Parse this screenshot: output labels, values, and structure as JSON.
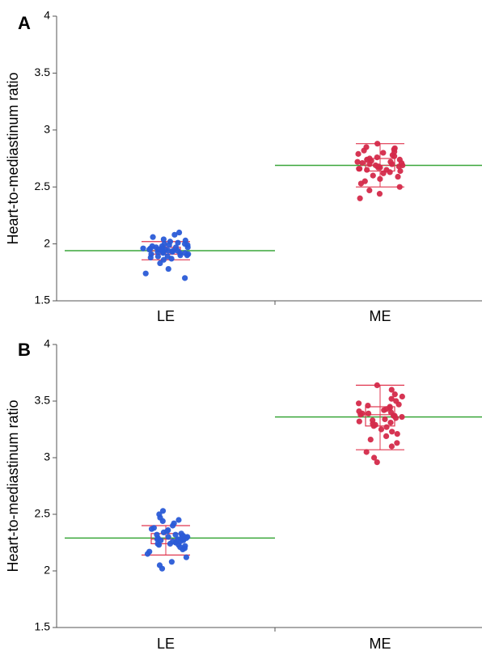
{
  "chart_data": [
    {
      "type": "scatter",
      "panel_label": "A",
      "ylabel": "Heart-to-mediastinum ratio",
      "ylim": [
        1.5,
        4
      ],
      "yticks": [
        "1.5",
        "2",
        "2.5",
        "3",
        "3.5",
        "4"
      ],
      "categories": [
        "LE",
        "ME"
      ],
      "grid": false,
      "groups": [
        {
          "category": "LE",
          "color": "#2a5bd7",
          "mean": 1.94,
          "box": {
            "q1": 1.91,
            "median": 1.94,
            "q3": 1.97
          },
          "whiskers": [
            1.86,
            2.02
          ],
          "points": [
            1.7,
            1.74,
            1.78,
            1.83,
            1.86,
            1.87,
            1.88,
            1.89,
            1.89,
            1.9,
            1.9,
            1.91,
            1.91,
            1.92,
            1.92,
            1.92,
            1.93,
            1.93,
            1.93,
            1.94,
            1.94,
            1.94,
            1.94,
            1.95,
            1.95,
            1.95,
            1.96,
            1.96,
            1.96,
            1.97,
            1.97,
            1.97,
            1.98,
            1.98,
            1.99,
            1.99,
            2.0,
            2.0,
            2.01,
            2.02,
            2.03,
            2.04,
            2.06,
            2.08,
            2.1
          ]
        },
        {
          "category": "ME",
          "color": "#d42a4a",
          "mean": 2.69,
          "box": {
            "q1": 2.64,
            "median": 2.69,
            "q3": 2.75
          },
          "whiskers": [
            2.5,
            2.88
          ],
          "points": [
            2.4,
            2.44,
            2.47,
            2.5,
            2.53,
            2.55,
            2.57,
            2.59,
            2.6,
            2.62,
            2.63,
            2.64,
            2.65,
            2.65,
            2.66,
            2.66,
            2.67,
            2.67,
            2.68,
            2.68,
            2.69,
            2.69,
            2.7,
            2.7,
            2.71,
            2.71,
            2.72,
            2.72,
            2.73,
            2.74,
            2.74,
            2.75,
            2.76,
            2.77,
            2.78,
            2.79,
            2.8,
            2.81,
            2.82,
            2.83,
            2.84,
            2.85,
            2.88
          ]
        }
      ]
    },
    {
      "type": "scatter",
      "panel_label": "B",
      "ylabel": "Heart-to-mediastinum ratio",
      "ylim": [
        1.5,
        4
      ],
      "yticks": [
        "1.5",
        "2",
        "2.5",
        "3",
        "3.5",
        "4"
      ],
      "categories": [
        "LE",
        "ME"
      ],
      "grid": false,
      "groups": [
        {
          "category": "LE",
          "color": "#2a5bd7",
          "mean": 2.29,
          "box": {
            "q1": 2.24,
            "median": 2.28,
            "q3": 2.33
          },
          "whiskers": [
            2.14,
            2.4
          ],
          "points": [
            2.02,
            2.05,
            2.08,
            2.12,
            2.15,
            2.17,
            2.19,
            2.2,
            2.21,
            2.22,
            2.23,
            2.23,
            2.24,
            2.24,
            2.25,
            2.25,
            2.26,
            2.26,
            2.27,
            2.27,
            2.28,
            2.28,
            2.28,
            2.29,
            2.29,
            2.3,
            2.3,
            2.31,
            2.31,
            2.32,
            2.32,
            2.33,
            2.34,
            2.35,
            2.36,
            2.37,
            2.38,
            2.4,
            2.42,
            2.44,
            2.45,
            2.47,
            2.5,
            2.53
          ]
        },
        {
          "category": "ME",
          "color": "#d42a4a",
          "mean": 3.36,
          "box": {
            "q1": 3.28,
            "median": 3.38,
            "q3": 3.45
          },
          "whiskers": [
            3.07,
            3.64
          ],
          "points": [
            2.96,
            3.0,
            3.05,
            3.1,
            3.13,
            3.16,
            3.19,
            3.21,
            3.23,
            3.25,
            3.27,
            3.28,
            3.29,
            3.3,
            3.31,
            3.32,
            3.33,
            3.34,
            3.35,
            3.36,
            3.37,
            3.37,
            3.38,
            3.39,
            3.39,
            3.4,
            3.41,
            3.42,
            3.43,
            3.44,
            3.45,
            3.46,
            3.47,
            3.48,
            3.5,
            3.52,
            3.54,
            3.56,
            3.6,
            3.64
          ]
        }
      ]
    }
  ]
}
